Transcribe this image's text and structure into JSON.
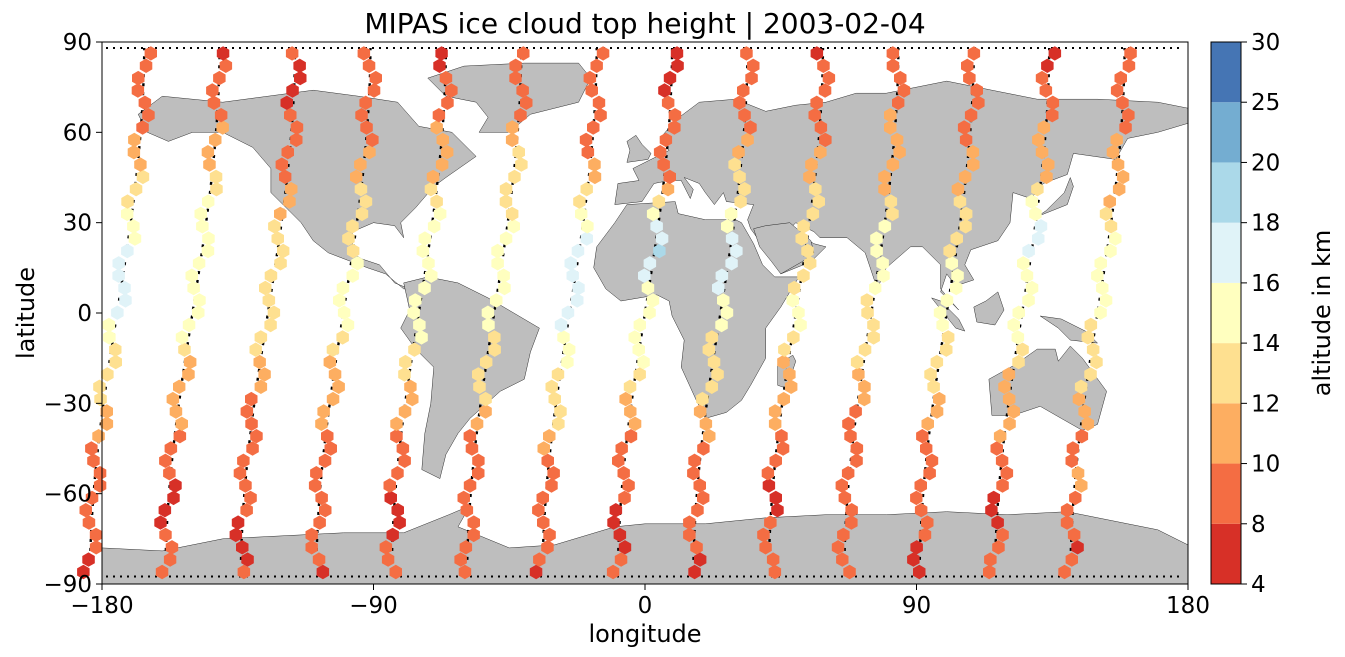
{
  "chart_data": {
    "type": "scatter",
    "title": "MIPAS ice cloud top height | 2003-02-04",
    "xlabel": "longitude",
    "ylabel": "latitude",
    "xlim": [
      -180,
      180
    ],
    "ylim": [
      -90,
      90
    ],
    "xticks": [
      -180,
      -90,
      0,
      90,
      180
    ],
    "yticks": [
      -90,
      -60,
      -30,
      0,
      30,
      60,
      90
    ],
    "xtick_labels": [
      "−180",
      "−90",
      "0",
      "90",
      "180"
    ],
    "ytick_labels": [
      "−90",
      "−60",
      "−30",
      "0",
      "30",
      "60",
      "90"
    ],
    "grid": false,
    "land_color": "#bebebe",
    "track_color": "#000000",
    "colorbar": {
      "label": "altitude in km",
      "boundaries": [
        4,
        8,
        10,
        12,
        14,
        16,
        18,
        20,
        25,
        30
      ],
      "tick_labels": [
        "4",
        "8",
        "10",
        "12",
        "14",
        "16",
        "18",
        "20",
        "25",
        "30"
      ],
      "colors": [
        "#a50026",
        "#d73027",
        "#f46d43",
        "#fdae61",
        "#fee090",
        "#ffffbf",
        "#e0f3f8",
        "#abd9e9",
        "#74add1",
        "#4575b4",
        "#313695"
      ]
    },
    "orbit_tracks": [
      {
        "lon_eq": -175,
        "alt_profile": [
          8,
          9,
          10,
          12,
          17,
          17,
          12,
          9,
          8
        ]
      },
      {
        "lon_eq": -150,
        "alt_profile": [
          8,
          8,
          9,
          11,
          15,
          15,
          13,
          9,
          8
        ]
      },
      {
        "lon_eq": -125,
        "alt_profile": [
          8,
          8,
          9,
          10,
          14,
          13,
          10,
          8,
          8
        ]
      },
      {
        "lon_eq": -100,
        "alt_profile": [
          8,
          9,
          9,
          11,
          15,
          14,
          11,
          9,
          8
        ]
      },
      {
        "lon_eq": -75,
        "alt_profile": [
          8,
          8,
          9,
          12,
          15,
          15,
          12,
          9,
          8
        ]
      },
      {
        "lon_eq": -50,
        "alt_profile": [
          9,
          9,
          10,
          13,
          15,
          15,
          13,
          10,
          9
        ]
      },
      {
        "lon_eq": -25,
        "alt_profile": [
          8,
          9,
          10,
          14,
          17,
          17,
          11,
          9,
          8
        ]
      },
      {
        "lon_eq": 0,
        "alt_profile": [
          8,
          8,
          9,
          13,
          15,
          18,
          10,
          8,
          8
        ]
      },
      {
        "lon_eq": 25,
        "alt_profile": [
          8,
          9,
          10,
          13,
          15,
          17,
          12,
          9,
          8
        ]
      },
      {
        "lon_eq": 50,
        "alt_profile": [
          8,
          8,
          9,
          11,
          14,
          14,
          12,
          9,
          8
        ]
      },
      {
        "lon_eq": 75,
        "alt_profile": [
          8,
          9,
          9,
          11,
          14,
          15,
          12,
          10,
          8
        ]
      },
      {
        "lon_eq": 100,
        "alt_profile": [
          8,
          8,
          9,
          12,
          15,
          14,
          11,
          9,
          8
        ]
      },
      {
        "lon_eq": 125,
        "alt_profile": [
          8,
          8,
          9,
          12,
          15,
          17,
          12,
          9,
          8
        ]
      },
      {
        "lon_eq": 150,
        "alt_profile": [
          8,
          9,
          10,
          12,
          15,
          15,
          11,
          9,
          8
        ]
      }
    ]
  }
}
